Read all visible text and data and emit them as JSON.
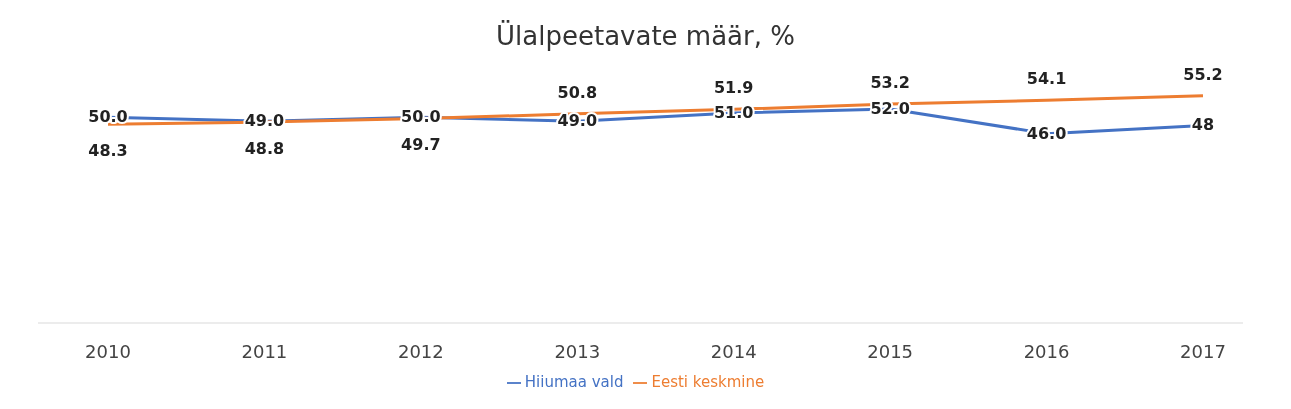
{
  "chart_data": {
    "type": "line",
    "title": "Ülalpeetavate määr, %",
    "categories": [
      "2010",
      "2011",
      "2012",
      "2013",
      "2014",
      "2015",
      "2016",
      "2017"
    ],
    "series": [
      {
        "name": "Hiiumaa vald",
        "color": "#4472c4",
        "values": [
          50.0,
          49.0,
          50.0,
          49.0,
          51.0,
          52.0,
          46.0,
          48
        ],
        "value_labels": [
          "50.0",
          "49.0",
          "50.0",
          "49.0",
          "51.0",
          "52.0",
          "46.0",
          "48"
        ]
      },
      {
        "name": "Eesti keskmine",
        "color": "#ed7d31",
        "values": [
          48.3,
          48.8,
          49.7,
          50.8,
          51.9,
          53.2,
          54.1,
          55.2
        ],
        "value_labels": [
          "48.3",
          "48.8",
          "49.7",
          "50.8",
          "51.9",
          "53.2",
          "54.1",
          "55.2"
        ]
      }
    ],
    "legend": "bottom",
    "marker": "none",
    "line_style": "solid"
  }
}
